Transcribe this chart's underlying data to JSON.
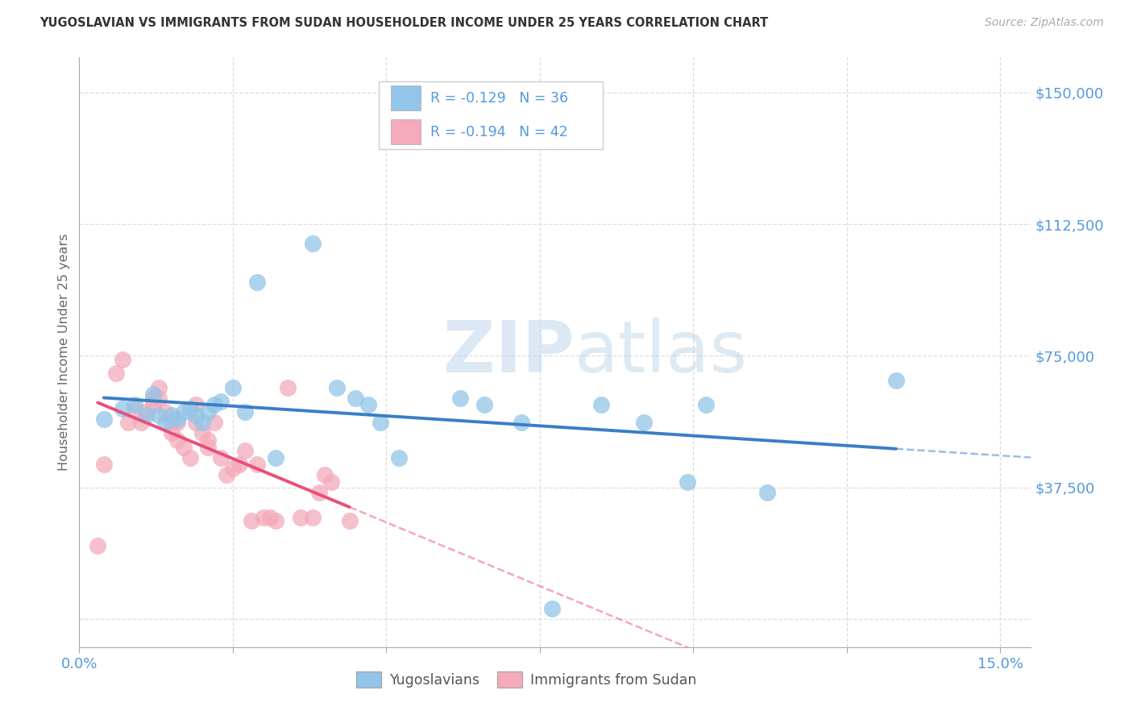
{
  "title": "YUGOSLAVIAN VS IMMIGRANTS FROM SUDAN HOUSEHOLDER INCOME UNDER 25 YEARS CORRELATION CHART",
  "source": "Source: ZipAtlas.com",
  "ylabel": "Householder Income Under 25 years",
  "xlim": [
    0.0,
    0.155
  ],
  "ylim": [
    -8000,
    160000
  ],
  "ytick_vals": [
    0,
    37500,
    75000,
    112500,
    150000
  ],
  "ytick_labels": [
    "",
    "$37,500",
    "$75,000",
    "$112,500",
    "$150,000"
  ],
  "xtick_vals": [
    0.0,
    0.025,
    0.05,
    0.075,
    0.1,
    0.125,
    0.15
  ],
  "xtick_labels": [
    "0.0%",
    "",
    "",
    "",
    "",
    "",
    "15.0%"
  ],
  "bg_color": "#ffffff",
  "grid_color": "#dddddd",
  "watermark_zip": "ZIP",
  "watermark_atlas": "atlas",
  "blue_dot_color": "#92C5E8",
  "pink_dot_color": "#F4AABB",
  "blue_line_color": "#3A7DC9",
  "pink_line_color": "#E8507A",
  "label_color": "#5599DD",
  "text_color": "#333333",
  "legend_label_blue": "Yugoslavians",
  "legend_label_pink": "Immigrants from Sudan",
  "r_blue": -0.129,
  "n_blue": 36,
  "r_pink": -0.194,
  "n_pink": 42,
  "blue_x": [
    0.004,
    0.007,
    0.009,
    0.011,
    0.012,
    0.013,
    0.014,
    0.015,
    0.016,
    0.017,
    0.018,
    0.019,
    0.02,
    0.021,
    0.022,
    0.023,
    0.025,
    0.027,
    0.029,
    0.032,
    0.038,
    0.042,
    0.045,
    0.047,
    0.049,
    0.052,
    0.062,
    0.066,
    0.072,
    0.077,
    0.085,
    0.092,
    0.099,
    0.102,
    0.112,
    0.133
  ],
  "blue_y": [
    57000,
    60000,
    61000,
    58000,
    64000,
    58000,
    56000,
    58000,
    57000,
    59000,
    60000,
    58000,
    56000,
    59000,
    61000,
    62000,
    66000,
    59000,
    96000,
    46000,
    107000,
    66000,
    63000,
    61000,
    56000,
    46000,
    63000,
    61000,
    56000,
    3000,
    61000,
    56000,
    39000,
    61000,
    36000,
    68000
  ],
  "pink_x": [
    0.003,
    0.004,
    0.006,
    0.007,
    0.008,
    0.009,
    0.01,
    0.011,
    0.012,
    0.012,
    0.013,
    0.013,
    0.014,
    0.015,
    0.015,
    0.016,
    0.016,
    0.017,
    0.018,
    0.019,
    0.019,
    0.02,
    0.021,
    0.021,
    0.022,
    0.023,
    0.024,
    0.025,
    0.026,
    0.027,
    0.028,
    0.029,
    0.03,
    0.031,
    0.032,
    0.034,
    0.036,
    0.038,
    0.039,
    0.04,
    0.041,
    0.044
  ],
  "pink_y": [
    21000,
    44000,
    70000,
    74000,
    56000,
    60000,
    56000,
    59000,
    63000,
    61000,
    66000,
    63000,
    59000,
    56000,
    53000,
    56000,
    51000,
    49000,
    46000,
    61000,
    56000,
    53000,
    51000,
    49000,
    56000,
    46000,
    41000,
    43000,
    44000,
    48000,
    28000,
    44000,
    29000,
    29000,
    28000,
    66000,
    29000,
    29000,
    36000,
    41000,
    39000,
    28000
  ]
}
